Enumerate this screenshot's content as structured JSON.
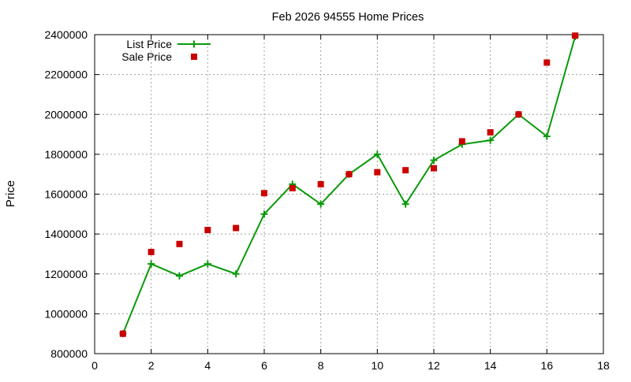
{
  "chart_data": {
    "type": "line",
    "title": "Feb 2026 94555 Home Prices",
    "xlabel": "",
    "ylabel": "Price",
    "xlim": [
      0,
      18
    ],
    "ylim": [
      800000,
      2400000
    ],
    "x_ticks": [
      0,
      2,
      4,
      6,
      8,
      10,
      12,
      14,
      16,
      18
    ],
    "y_ticks": [
      800000,
      1000000,
      1200000,
      1400000,
      1600000,
      1800000,
      2000000,
      2200000,
      2400000
    ],
    "x_tick_labels": [
      "0",
      "2",
      "4",
      "6",
      "8",
      "10",
      "12",
      "14",
      "16",
      "18"
    ],
    "y_tick_labels": [
      "800000",
      "1000000",
      "1200000",
      "1400000",
      "1600000",
      "1800000",
      "2000000",
      "2200000",
      "2400000"
    ],
    "grid": true,
    "legend_position": "top-left",
    "series": [
      {
        "name": "List Price",
        "style": "line-with-plus-markers",
        "color": "#0a9a0a",
        "points": [
          [
            1,
            900000
          ],
          [
            2,
            1250000
          ],
          [
            3,
            1190000
          ],
          [
            4,
            1250000
          ],
          [
            5,
            1200000
          ],
          [
            6,
            1500000
          ],
          [
            7,
            1650000
          ],
          [
            8,
            1550000
          ],
          [
            9,
            1700000
          ],
          [
            10,
            1800000
          ],
          [
            11,
            1550000
          ],
          [
            12,
            1770000
          ],
          [
            13,
            1850000
          ],
          [
            14,
            1870000
          ],
          [
            15,
            2000000
          ],
          [
            16,
            1890000
          ],
          [
            17,
            2390000
          ]
        ]
      },
      {
        "name": "Sale Price",
        "style": "square-markers",
        "color": "#cc0000",
        "points": [
          [
            1,
            900000
          ],
          [
            2,
            1310000
          ],
          [
            3,
            1350000
          ],
          [
            4,
            1420000
          ],
          [
            5,
            1430000
          ],
          [
            6,
            1605000
          ],
          [
            7,
            1630000
          ],
          [
            8,
            1650000
          ],
          [
            9,
            1700000
          ],
          [
            10,
            1710000
          ],
          [
            11,
            1720000
          ],
          [
            12,
            1730000
          ],
          [
            13,
            1865000
          ],
          [
            14,
            1910000
          ],
          [
            15,
            2000000
          ],
          [
            16,
            2260000
          ],
          [
            17,
            2395000
          ]
        ]
      }
    ]
  }
}
